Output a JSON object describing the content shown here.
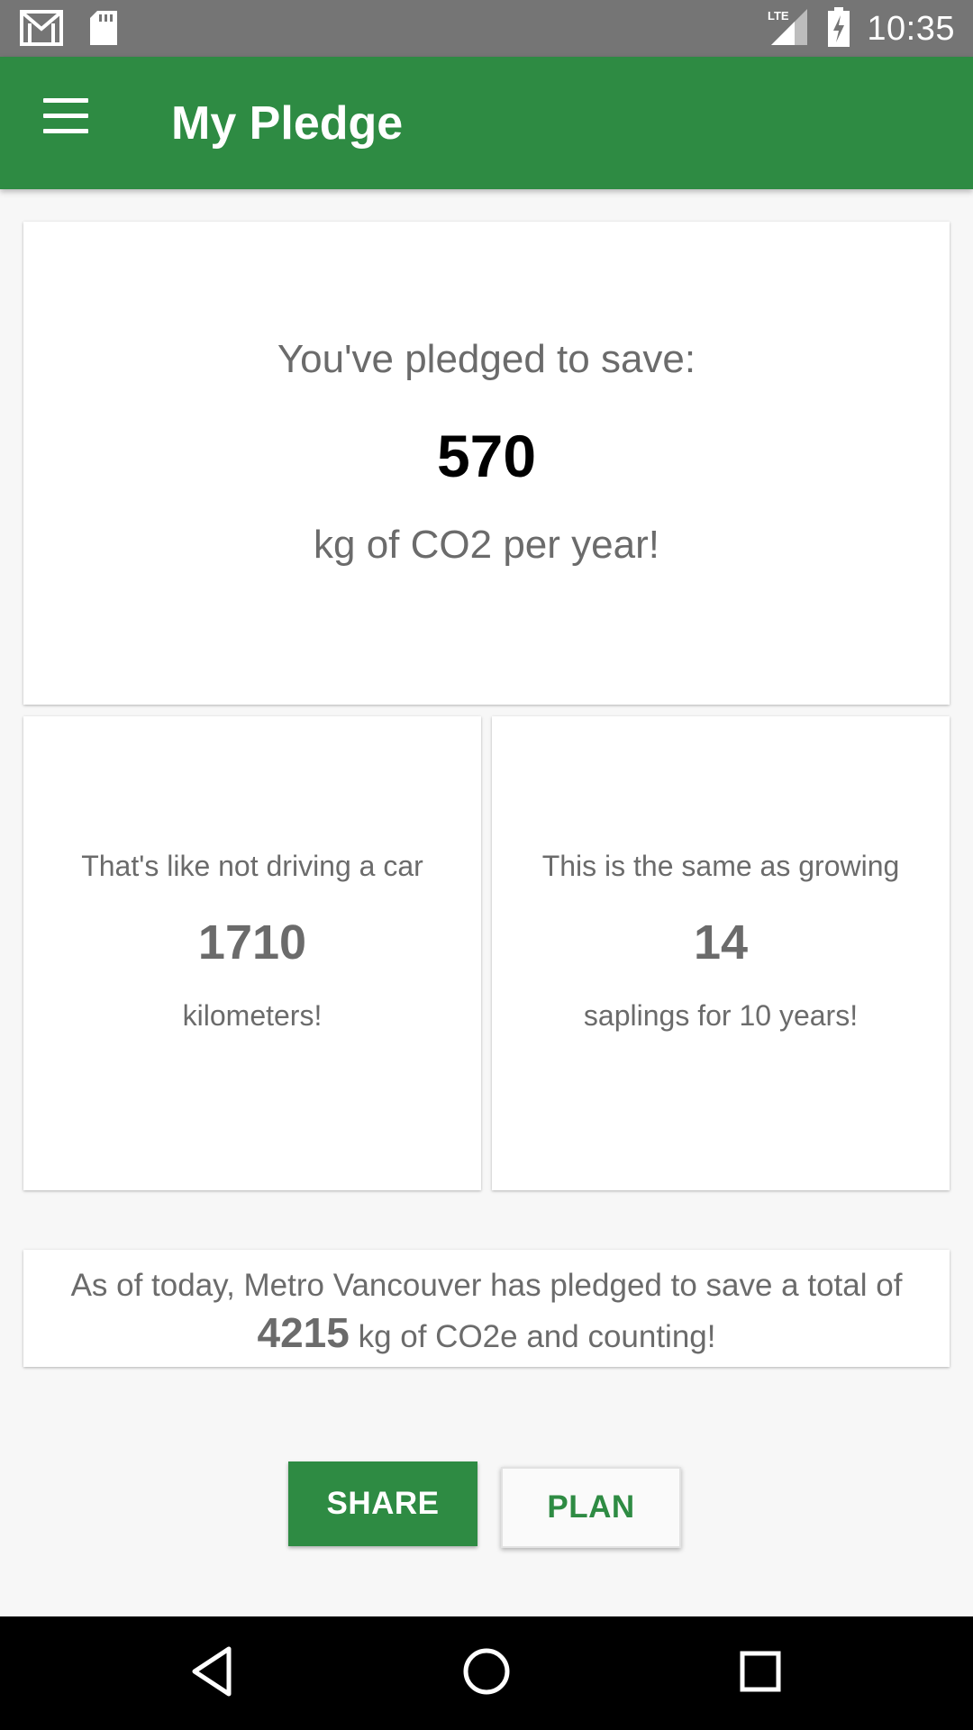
{
  "status_bar": {
    "time": "10:35",
    "network": "LTE",
    "icons": [
      "gmail-icon",
      "sd-card-icon",
      "lte-signal-icon",
      "battery-charging-icon"
    ]
  },
  "app_bar": {
    "title": "My Pledge",
    "menu_icon": "hamburger-menu-icon"
  },
  "pledge": {
    "lead": "You've pledged to save:",
    "value": "570",
    "unit_text": "kg of CO2 per year!"
  },
  "car": {
    "lead": "That's like not driving a car",
    "value": "1710",
    "tail": "kilometers!"
  },
  "trees": {
    "lead": "This is the same as growing",
    "value": "14",
    "tail": "saplings for 10 years!"
  },
  "total": {
    "prefix": "As of today, Metro Vancouver has pledged to save a total of",
    "value": "4215",
    "suffix": "kg of CO2e and counting!"
  },
  "buttons": {
    "share": "SHARE",
    "plan": "PLAN"
  },
  "colors": {
    "primary": "#2e8b43",
    "status_bar": "#757575",
    "background": "#f7f7f7"
  }
}
